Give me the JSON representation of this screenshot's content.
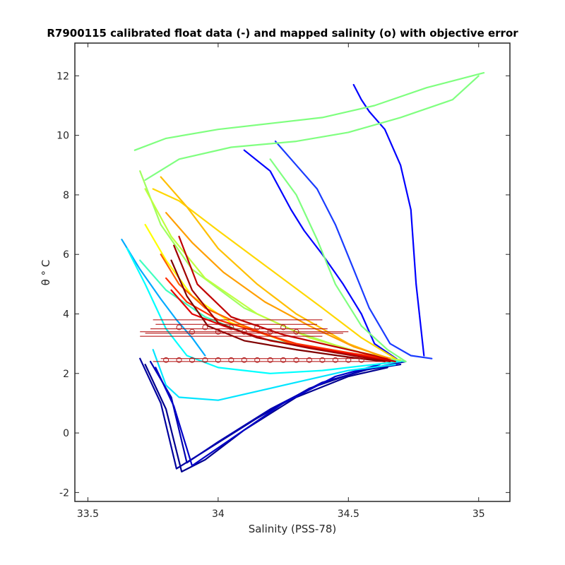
{
  "chart_data": {
    "type": "line",
    "title": "R7900115 calibrated float data (-) and mapped salinity (o) with objective error",
    "xlabel": "Salinity (PSS-78)",
    "ylabel": "θ ° C",
    "xlim": [
      33.45,
      35.12
    ],
    "ylim": [
      -2.3,
      13.1
    ],
    "xticks": [
      33.5,
      34,
      34.5,
      35
    ],
    "xtick_labels": [
      "33.5",
      "34",
      "34.5",
      "35"
    ],
    "yticks": [
      -2,
      0,
      2,
      4,
      6,
      8,
      10,
      12
    ],
    "ytick_labels": [
      "-2",
      "0",
      "2",
      "4",
      "6",
      "8",
      "10",
      "12"
    ],
    "grid": false,
    "legend": "none",
    "colormap": "jet",
    "series": [
      {
        "color": "#00008f",
        "x": [
          33.72,
          33.8,
          33.86,
          33.95,
          34.1,
          34.3,
          34.5,
          34.65
        ],
        "y": [
          2.3,
          0.8,
          -1.3,
          -0.9,
          0.1,
          1.2,
          1.9,
          2.2
        ]
      },
      {
        "color": "#00009f",
        "x": [
          33.7,
          33.78,
          33.84,
          33.95,
          34.15,
          34.35,
          34.55,
          34.7
        ],
        "y": [
          2.5,
          1.0,
          -1.2,
          -0.6,
          0.5,
          1.5,
          2.1,
          2.3
        ]
      },
      {
        "color": "#0000b0",
        "x": [
          33.74,
          33.82,
          33.88,
          34.0,
          34.2,
          34.4,
          34.6,
          34.72
        ],
        "y": [
          2.4,
          1.2,
          -1.0,
          -0.3,
          0.8,
          1.7,
          2.2,
          2.4
        ]
      },
      {
        "color": "#0000c8",
        "x": [
          33.76,
          33.83,
          33.9,
          34.05,
          34.25,
          34.45,
          34.62
        ],
        "y": [
          2.2,
          0.9,
          -1.1,
          -0.2,
          1.0,
          1.9,
          2.3
        ]
      },
      {
        "color": "#0000ff",
        "x": [
          34.1,
          34.2,
          34.28,
          34.33,
          34.4,
          34.48,
          34.55,
          34.6,
          34.7
        ],
        "y": [
          9.5,
          8.8,
          7.5,
          6.8,
          6.0,
          5.0,
          4.0,
          3.0,
          2.4
        ]
      },
      {
        "color": "#1a3cff",
        "x": [
          34.22,
          34.3,
          34.38,
          34.45,
          34.52,
          34.58,
          34.66,
          34.74,
          34.82
        ],
        "y": [
          9.8,
          9.0,
          8.2,
          7.0,
          5.5,
          4.2,
          3.0,
          2.6,
          2.5
        ]
      },
      {
        "color": "#0000ff",
        "x": [
          34.52,
          34.55,
          34.58,
          34.64,
          34.7,
          34.74,
          34.76,
          34.79
        ],
        "y": [
          11.7,
          11.2,
          10.8,
          10.2,
          9.0,
          7.5,
          5.0,
          2.6
        ]
      },
      {
        "color": "#00aaff",
        "x": [
          33.63,
          33.7,
          33.78,
          33.84,
          33.9,
          33.95
        ],
        "y": [
          6.5,
          5.5,
          4.5,
          3.8,
          3.2,
          2.6
        ]
      },
      {
        "color": "#00ffff",
        "x": [
          33.65,
          33.72,
          33.8,
          33.88,
          34.0,
          34.2,
          34.4,
          34.6,
          34.7
        ],
        "y": [
          6.2,
          5.0,
          3.5,
          2.6,
          2.2,
          2.0,
          2.1,
          2.3,
          2.4
        ]
      },
      {
        "color": "#00e5ff",
        "x": [
          33.75,
          33.8,
          33.85,
          34.0,
          34.25,
          34.5,
          34.68
        ],
        "y": [
          2.8,
          1.6,
          1.2,
          1.1,
          1.6,
          2.1,
          2.3
        ]
      },
      {
        "color": "#40ffbf",
        "x": [
          33.7,
          33.8,
          33.95,
          34.15,
          34.4,
          34.6,
          34.72
        ],
        "y": [
          5.8,
          4.8,
          3.9,
          3.2,
          2.8,
          2.5,
          2.4
        ]
      },
      {
        "color": "#7fff7f",
        "x": [
          33.68,
          33.8,
          34.0,
          34.2,
          34.4,
          34.6,
          34.8,
          35.02
        ],
        "y": [
          9.5,
          9.9,
          10.2,
          10.4,
          10.6,
          11.0,
          11.6,
          12.1
        ]
      },
      {
        "color": "#80ff80",
        "x": [
          33.72,
          33.85,
          34.05,
          34.3,
          34.5,
          34.7,
          34.9,
          35.0
        ],
        "y": [
          8.5,
          9.2,
          9.6,
          9.8,
          10.1,
          10.6,
          11.2,
          12.0
        ]
      },
      {
        "color": "#7fff7f",
        "x": [
          34.2,
          34.3,
          34.38,
          34.45,
          34.55,
          34.65,
          34.72
        ],
        "y": [
          9.2,
          8.0,
          6.5,
          5.0,
          3.6,
          2.8,
          2.4
        ]
      },
      {
        "color": "#a0ff60",
        "x": [
          33.7,
          33.78,
          33.9,
          34.1,
          34.3,
          34.5,
          34.65
        ],
        "y": [
          8.8,
          7.0,
          5.5,
          4.2,
          3.4,
          2.8,
          2.5
        ]
      },
      {
        "color": "#bfff40",
        "x": [
          33.72,
          33.82,
          33.95,
          34.15,
          34.35,
          34.55,
          34.7
        ],
        "y": [
          8.2,
          6.6,
          5.2,
          4.0,
          3.2,
          2.7,
          2.45
        ]
      },
      {
        "color": "#ffff00",
        "x": [
          33.72,
          33.8,
          33.9,
          34.05,
          34.25,
          34.45,
          34.6
        ],
        "y": [
          7.0,
          5.8,
          4.6,
          3.7,
          3.1,
          2.7,
          2.5
        ]
      },
      {
        "color": "#ffd700",
        "x": [
          33.75,
          33.85,
          34.0,
          34.2,
          34.4,
          34.55,
          34.68
        ],
        "y": [
          8.2,
          7.8,
          6.8,
          5.5,
          4.2,
          3.2,
          2.5
        ]
      },
      {
        "color": "#ffbf00",
        "x": [
          33.78,
          33.88,
          34.0,
          34.15,
          34.3,
          34.5,
          34.65
        ],
        "y": [
          8.6,
          7.6,
          6.2,
          5.0,
          4.0,
          3.0,
          2.5
        ]
      },
      {
        "color": "#ff9f00",
        "x": [
          33.8,
          33.9,
          34.02,
          34.18,
          34.35,
          34.52,
          34.66
        ],
        "y": [
          7.4,
          6.4,
          5.4,
          4.4,
          3.6,
          2.9,
          2.5
        ]
      },
      {
        "color": "#ff6000",
        "x": [
          33.78,
          33.85,
          33.95,
          34.1,
          34.28,
          34.48,
          34.64
        ],
        "y": [
          6.0,
          5.0,
          4.2,
          3.6,
          3.0,
          2.7,
          2.5
        ]
      },
      {
        "color": "#ff3000",
        "x": [
          33.8,
          33.88,
          34.0,
          34.15,
          34.3,
          34.5,
          34.65
        ],
        "y": [
          5.2,
          4.4,
          3.8,
          3.4,
          3.0,
          2.7,
          2.5
        ]
      },
      {
        "color": "#e00000",
        "x": [
          33.82,
          33.9,
          34.02,
          34.2,
          34.4,
          34.58,
          34.68
        ],
        "y": [
          4.8,
          4.0,
          3.6,
          3.1,
          2.8,
          2.55,
          2.4
        ]
      },
      {
        "color": "#c00000",
        "x": [
          33.85,
          33.92,
          34.05,
          34.25,
          34.45,
          34.6,
          34.68
        ],
        "y": [
          6.6,
          5.0,
          3.9,
          3.3,
          2.9,
          2.6,
          2.4
        ]
      },
      {
        "color": "#a00000",
        "x": [
          33.83,
          33.9,
          34.0,
          34.15,
          34.35,
          34.55,
          34.66
        ],
        "y": [
          6.3,
          4.8,
          3.7,
          3.2,
          2.85,
          2.55,
          2.4
        ]
      },
      {
        "color": "#800000",
        "x": [
          33.82,
          33.88,
          33.96,
          34.1,
          34.3,
          34.5,
          34.64
        ],
        "y": [
          5.8,
          4.6,
          3.6,
          3.1,
          2.8,
          2.55,
          2.4
        ]
      }
    ],
    "mapped_salinity": {
      "marker": "o",
      "x": [
        33.8,
        33.85,
        33.9,
        33.95,
        34.0,
        34.05,
        34.1,
        34.15,
        34.2,
        34.25,
        34.3,
        34.35,
        34.4,
        34.45,
        34.5,
        34.55,
        33.9,
        34.0,
        34.1,
        34.2,
        34.3,
        33.85,
        33.95,
        34.05,
        34.15,
        34.25
      ],
      "y": [
        2.45,
        2.45,
        2.45,
        2.45,
        2.45,
        2.45,
        2.45,
        2.45,
        2.45,
        2.45,
        2.45,
        2.45,
        2.45,
        2.45,
        2.45,
        2.45,
        3.4,
        3.4,
        3.4,
        3.4,
        3.4,
        3.55,
        3.55,
        3.55,
        3.55,
        3.55
      ]
    },
    "objective_error": {
      "color": "#b00000",
      "bars": [
        {
          "y": 2.4,
          "xmin": 33.75,
          "xmax": 34.65
        },
        {
          "y": 2.5,
          "xmin": 33.78,
          "xmax": 34.6
        },
        {
          "y": 3.25,
          "xmin": 33.7,
          "xmax": 34.4
        },
        {
          "y": 3.35,
          "xmin": 33.72,
          "xmax": 34.48
        },
        {
          "y": 3.4,
          "xmin": 33.7,
          "xmax": 34.5
        },
        {
          "y": 3.5,
          "xmin": 33.74,
          "xmax": 34.42
        },
        {
          "y": 3.65,
          "xmin": 33.76,
          "xmax": 34.38
        },
        {
          "y": 3.8,
          "xmin": 33.75,
          "xmax": 34.4
        }
      ]
    }
  }
}
